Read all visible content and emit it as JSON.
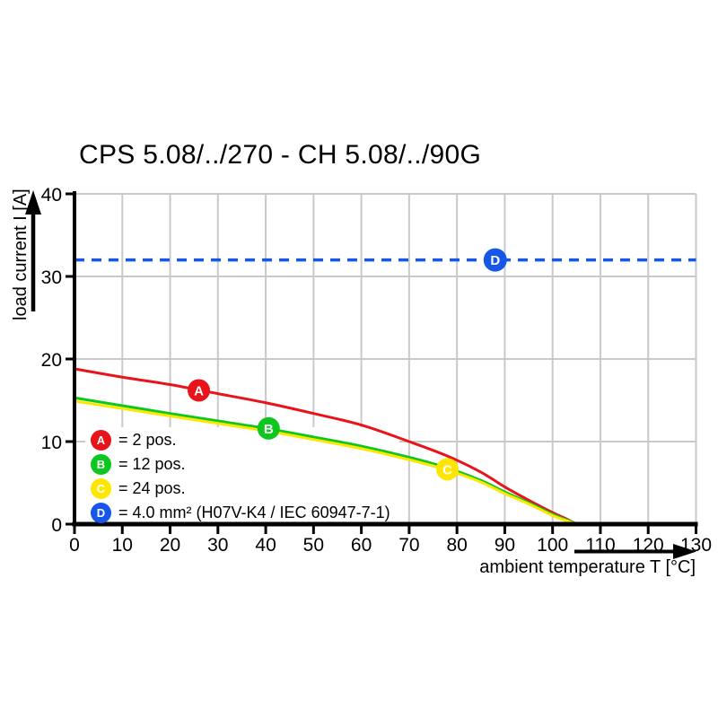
{
  "legend": [
    {
      "letter": "A",
      "label": "= 2 pos.",
      "color": "#e8131b"
    },
    {
      "letter": "B",
      "label": "= 12 pos.",
      "color": "#0cc81e"
    },
    {
      "letter": "C",
      "label": "= 24 pos.",
      "color": "#ffe600"
    },
    {
      "letter": "D",
      "label": "= 4.0 mm² (H07V-K4 / IEC 60947-7-1)",
      "color": "#1657e8"
    }
  ],
  "chart_data": {
    "type": "line",
    "title": "CPS 5.08/../270 - CH 5.08/../90G",
    "xlabel": "ambient temperature T [°C]",
    "ylabel": "load current I [A]",
    "xlim": [
      0,
      130
    ],
    "ylim": [
      0,
      40
    ],
    "grid": true,
    "grid_color": "#c9c9c9",
    "x_ticks": [
      0,
      10,
      20,
      30,
      40,
      50,
      60,
      70,
      80,
      90,
      100,
      110,
      120,
      130
    ],
    "y_ticks": [
      0,
      10,
      20,
      30,
      40
    ],
    "series": [
      {
        "name": "A = 2 pos.",
        "color": "#e8131b",
        "style": "solid",
        "points": [
          [
            0,
            18.8
          ],
          [
            10,
            17.8
          ],
          [
            20,
            16.9
          ],
          [
            30,
            15.8
          ],
          [
            40,
            14.7
          ],
          [
            50,
            13.4
          ],
          [
            60,
            12.0
          ],
          [
            70,
            10.0
          ],
          [
            78,
            8.25
          ],
          [
            85,
            6.3
          ],
          [
            90,
            4.5
          ],
          [
            95,
            2.9
          ],
          [
            100,
            1.4
          ],
          [
            103,
            0.6
          ],
          [
            105,
            0
          ]
        ]
      },
      {
        "name": "B = 12 pos.",
        "color": "#0cc81e",
        "style": "solid",
        "points": [
          [
            0,
            15.3
          ],
          [
            10,
            14.35
          ],
          [
            20,
            13.4
          ],
          [
            30,
            12.5
          ],
          [
            40,
            11.6
          ],
          [
            50,
            10.55
          ],
          [
            60,
            9.45
          ],
          [
            70,
            8.1
          ],
          [
            78,
            6.8
          ],
          [
            85,
            5.3
          ],
          [
            90,
            3.9
          ],
          [
            95,
            2.6
          ],
          [
            100,
            1.2
          ],
          [
            103,
            0.5
          ],
          [
            105,
            0
          ]
        ]
      },
      {
        "name": "C = 24 pos.",
        "color": "#ffe600",
        "style": "solid",
        "points": [
          [
            0,
            14.9
          ],
          [
            10,
            14.0
          ],
          [
            20,
            13.1
          ],
          [
            30,
            12.2
          ],
          [
            40,
            11.3
          ],
          [
            50,
            10.25
          ],
          [
            60,
            9.15
          ],
          [
            70,
            7.8
          ],
          [
            78,
            6.55
          ],
          [
            85,
            5.1
          ],
          [
            90,
            3.7
          ],
          [
            95,
            2.45
          ],
          [
            100,
            1.05
          ],
          [
            103,
            0.4
          ],
          [
            105,
            0
          ]
        ]
      },
      {
        "name": "D = 4.0 mm² (H07V-K4 / IEC 60947-7-1)",
        "color": "#1657e8",
        "style": "dashed",
        "points": [
          [
            0,
            32
          ],
          [
            130,
            32
          ]
        ]
      }
    ],
    "markers": [
      {
        "letter": "A",
        "x": 26,
        "y": 16.2,
        "color": "#e8131b"
      },
      {
        "letter": "B",
        "x": 40.6,
        "y": 11.6,
        "color": "#0cc81e"
      },
      {
        "letter": "C",
        "x": 78,
        "y": 6.65,
        "color": "#ffe600"
      },
      {
        "letter": "D",
        "x": 88,
        "y": 32,
        "color": "#1657e8"
      }
    ]
  }
}
